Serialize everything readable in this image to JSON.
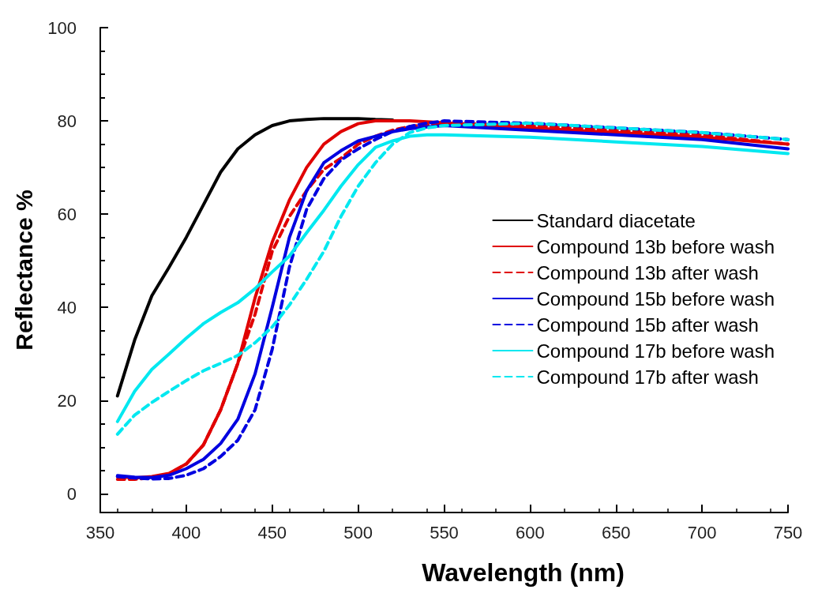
{
  "chart_data": {
    "type": "line",
    "xlabel": "Wavelength (nm)",
    "ylabel": "Reflectance %",
    "xlim": [
      350,
      750
    ],
    "xticks": [
      350,
      400,
      450,
      500,
      550,
      600,
      650,
      700,
      750
    ],
    "ylim": [
      -4,
      100
    ],
    "yticks": [
      0,
      20,
      40,
      60,
      80,
      100
    ],
    "grid": false,
    "legend": "right",
    "marker": "none",
    "x": [
      360,
      370,
      380,
      390,
      400,
      410,
      420,
      430,
      440,
      450,
      460,
      470,
      480,
      490,
      500,
      510,
      520,
      530,
      540,
      550,
      600,
      650,
      700,
      750
    ],
    "series": [
      {
        "name": "Standard diacetate",
        "color": "#000000",
        "line_style": "solid",
        "values": [
          21,
          33,
          42.5,
          48.6,
          55,
          62,
          69,
          74,
          77,
          79,
          80,
          80.3,
          80.5,
          80.5,
          80.5,
          80.3,
          80.2,
          null,
          null,
          null,
          null,
          null,
          null,
          null
        ]
      },
      {
        "name": "Compound 13b before wash",
        "color": "#e00000",
        "line_style": "solid",
        "values": [
          3.7,
          3.4,
          3.7,
          4.4,
          6.4,
          10.5,
          18,
          28,
          42,
          54,
          63,
          70,
          75,
          77.7,
          79.4,
          80,
          80,
          80,
          79.8,
          79.6,
          78.5,
          77.5,
          76.5,
          75
        ]
      },
      {
        "name": "Compound 13b after wash",
        "color": "#e00000",
        "line_style": "dashed",
        "values": [
          3.1,
          3.1,
          3.5,
          4.3,
          6.4,
          10.5,
          18,
          28,
          38.5,
          52,
          59.5,
          65,
          69.6,
          72,
          75,
          76.7,
          78,
          78.8,
          79.2,
          79.5,
          79,
          78,
          77,
          75
        ]
      },
      {
        "name": "Compound 15b before wash",
        "color": "#0000e0",
        "line_style": "solid",
        "values": [
          3.9,
          3.6,
          3.5,
          4,
          5.4,
          7.4,
          10.8,
          16,
          25.7,
          40,
          55,
          65,
          71,
          73.6,
          75.7,
          76.7,
          77.7,
          78.3,
          78.7,
          79,
          78,
          77,
          76,
          74
        ]
      },
      {
        "name": "Compound 15b after wash",
        "color": "#0000e0",
        "line_style": "dashed",
        "values": [
          3.7,
          3.4,
          3.2,
          3.3,
          4,
          5.4,
          8,
          11.5,
          18,
          31,
          48.6,
          61,
          67.6,
          71.6,
          74,
          76,
          77.7,
          78.8,
          79.5,
          80,
          79.5,
          78.5,
          77.5,
          76
        ]
      },
      {
        "name": "Compound 17b before wash",
        "color": "#00e8f0",
        "line_style": "solid",
        "values": [
          15.5,
          22,
          26.7,
          30,
          33.4,
          36.5,
          38.9,
          41,
          44,
          47.6,
          51,
          56,
          60.8,
          66,
          70.6,
          74.3,
          75.7,
          76.7,
          77,
          77,
          76.5,
          75.5,
          74.5,
          73
        ]
      },
      {
        "name": "Compound 17b after wash",
        "color": "#00e8f0",
        "line_style": "dashed",
        "values": [
          12.8,
          16.9,
          19.6,
          22,
          24.3,
          26.4,
          28,
          29.7,
          32.4,
          35.8,
          40.5,
          46,
          52,
          59.5,
          66,
          71,
          75,
          77.5,
          78.5,
          79,
          79.5,
          78.5,
          77.5,
          76
        ]
      }
    ]
  }
}
